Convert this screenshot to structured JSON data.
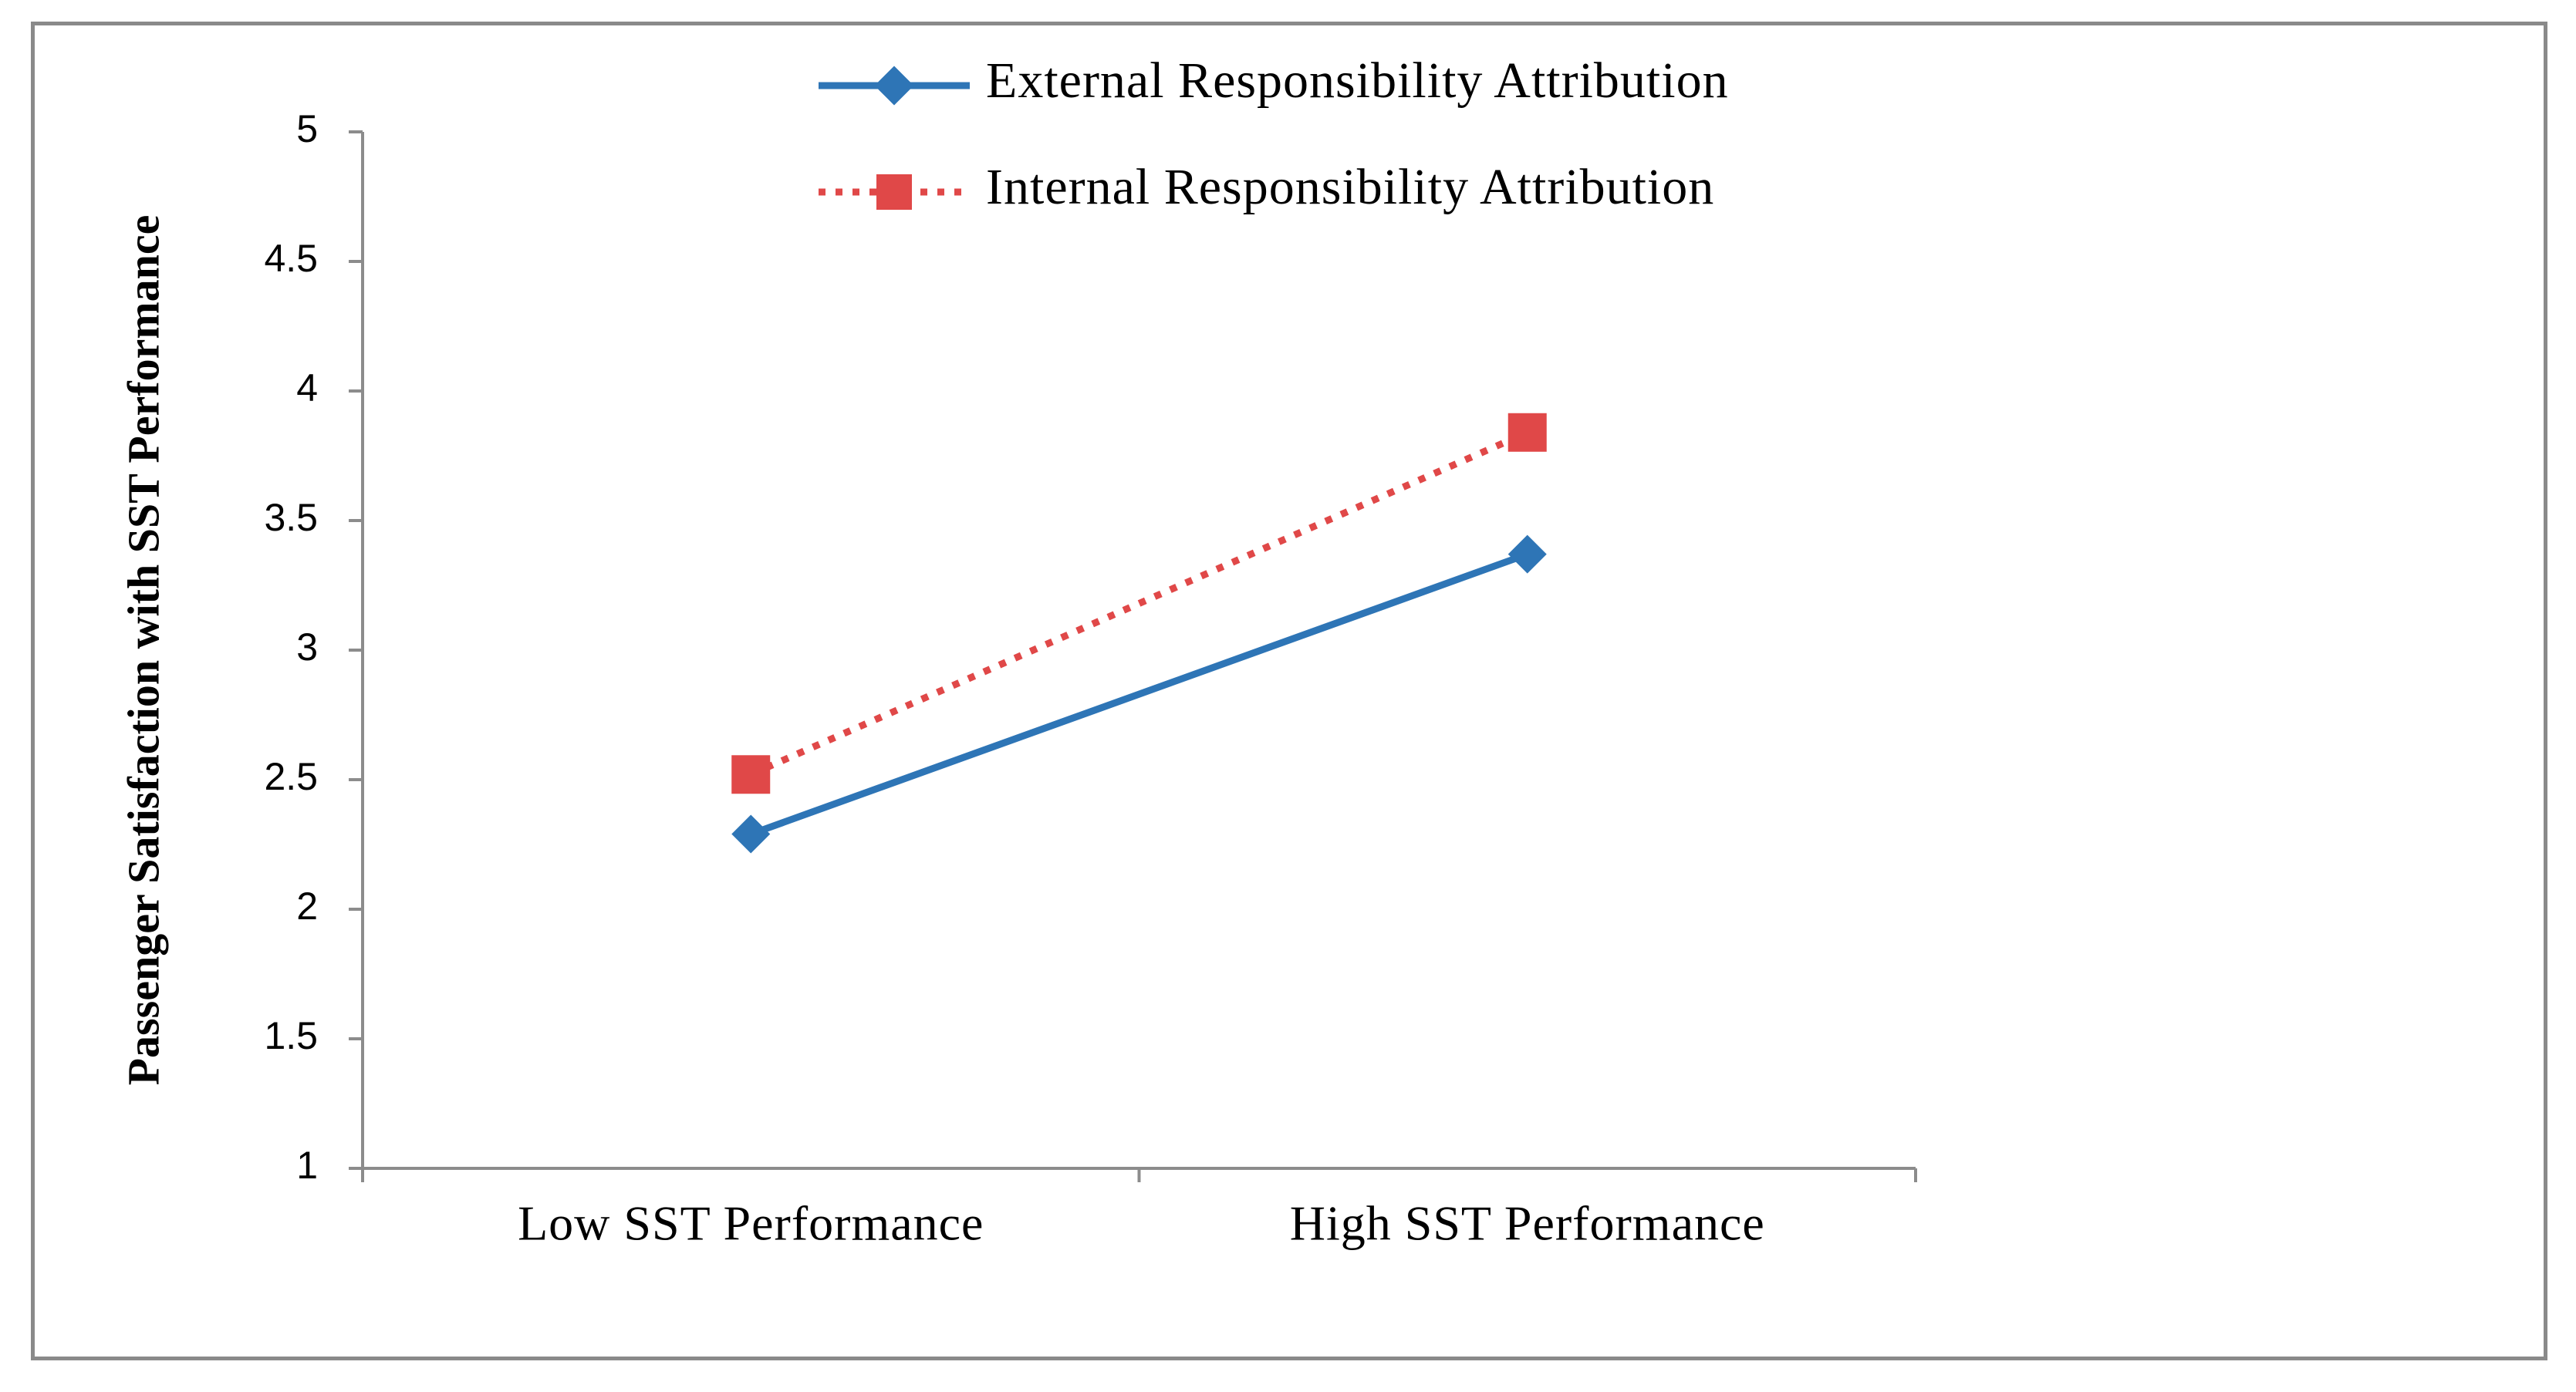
{
  "chart_data": {
    "type": "line",
    "title": "",
    "xlabel": "",
    "ylabel": "Passenger Satisfaction with SST Performance",
    "categories": [
      "Low SST Performance",
      "High SST Performance"
    ],
    "ylim": [
      1,
      5
    ],
    "yticks": [
      "1",
      "1.5",
      "2",
      "2.5",
      "3",
      "3.5",
      "4",
      "4.5",
      "5"
    ],
    "grid": false,
    "legend_position": "top",
    "series": [
      {
        "name": "External Responsibility Attribution",
        "values": [
          2.29,
          3.37
        ],
        "color": "#2E75B6",
        "line_style": "solid",
        "marker": "diamond"
      },
      {
        "name": "Internal Responsibility Attribution",
        "values": [
          2.52,
          3.84
        ],
        "color": "#E04848",
        "line_style": "dotted",
        "marker": "square"
      }
    ]
  }
}
